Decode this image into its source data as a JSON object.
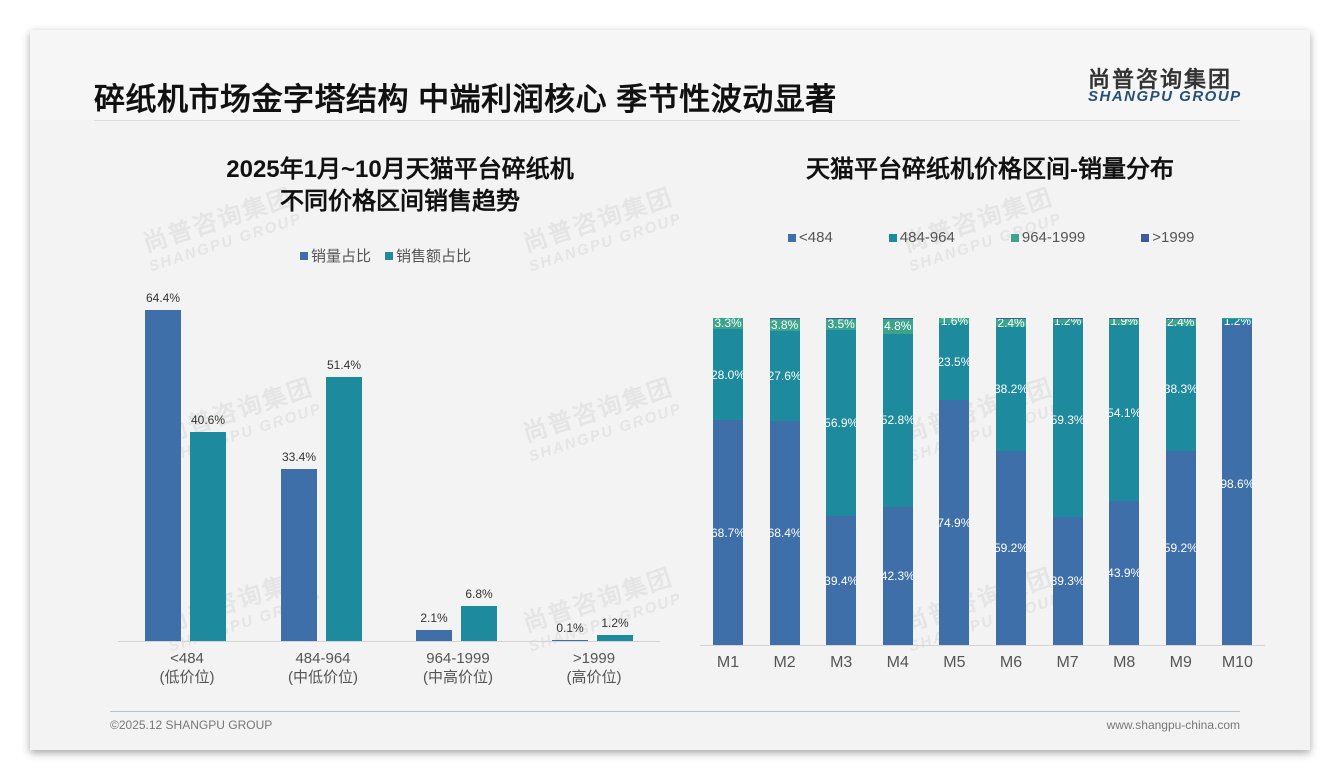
{
  "header": {
    "title": "碎纸机市场金字塔结构 中端利润核心 季节性波动显著",
    "logo_cn": "尚普咨询集团",
    "logo_en": "SHANGPU GROUP"
  },
  "watermark": {
    "cn": "尚普咨询集团",
    "en": "SHANGPU GROUP"
  },
  "left_chart": {
    "title_line1": "2025年1月~10月天猫平台碎纸机",
    "title_line2": "不同价格区间销售趋势",
    "legend": [
      {
        "label": "销量占比",
        "color": "#3f6fa8"
      },
      {
        "label": "销售额占比",
        "color": "#1e8a9e"
      }
    ],
    "groups": [
      {
        "cat": "<484",
        "sub": "(低价位)",
        "v1": "64.4%",
        "v2": "40.6%"
      },
      {
        "cat": "484-964",
        "sub": "(中低价位)",
        "v1": "33.4%",
        "v2": "51.4%"
      },
      {
        "cat": "964-1999",
        "sub": "(中高价位)",
        "v1": "2.1%",
        "v2": "6.8%"
      },
      {
        "cat": ">1999",
        "sub": "(高价位)",
        "v1": "0.1%",
        "v2": "1.2%"
      }
    ]
  },
  "right_chart": {
    "title": "天猫平台碎纸机价格区间-销量分布",
    "legend": [
      {
        "label": "<484",
        "color": "#3f6fa8"
      },
      {
        "label": "484-964",
        "color": "#1e8a9e"
      },
      {
        "label": "964-1999",
        "color": "#3aa58a"
      },
      {
        "label": ">1999",
        "color": "#3e5a99"
      }
    ]
  },
  "chart_data": [
    {
      "type": "bar",
      "title": "2025年1月~10月天猫平台碎纸机不同价格区间销售趋势",
      "categories": [
        "<484 (低价位)",
        "484-964 (中低价位)",
        "964-1999 (中高价位)",
        ">1999 (高价位)"
      ],
      "series": [
        {
          "name": "销量占比",
          "values": [
            64.4,
            33.4,
            2.1,
            0.1
          ]
        },
        {
          "name": "销售额占比",
          "values": [
            40.6,
            51.4,
            6.8,
            1.2
          ]
        }
      ],
      "xlabel": "",
      "ylabel": "",
      "unit": "%",
      "legend_position": "top",
      "grid": false
    },
    {
      "type": "bar",
      "stacked": true,
      "title": "天猫平台碎纸机价格区间-销量分布",
      "categories": [
        "M1",
        "M2",
        "M3",
        "M4",
        "M5",
        "M6",
        "M7",
        "M8",
        "M9",
        "M10"
      ],
      "series": [
        {
          "name": "<484",
          "values": [
            68.7,
            68.4,
            39.4,
            42.3,
            74.9,
            59.2,
            39.3,
            43.9,
            59.2,
            98.6
          ]
        },
        {
          "name": "484-964",
          "values": [
            28.0,
            27.6,
            56.9,
            52.8,
            23.5,
            38.2,
            59.3,
            54.1,
            38.3,
            1.2
          ]
        },
        {
          "name": "964-1999",
          "values": [
            3.3,
            3.8,
            3.5,
            4.8,
            1.6,
            2.4,
            1.2,
            1.9,
            2.4,
            0.2
          ]
        },
        {
          "name": ">1999",
          "values": [
            0.0,
            0.2,
            0.2,
            0.1,
            0.0,
            0.2,
            0.2,
            0.1,
            0.1,
            0.0
          ]
        }
      ],
      "ylim": [
        0,
        100
      ],
      "unit": "%",
      "legend_position": "top",
      "grid": false
    }
  ],
  "footer": {
    "copyright": "©2025.12 SHANGPU GROUP",
    "website": "www.shangpu-china.com"
  }
}
